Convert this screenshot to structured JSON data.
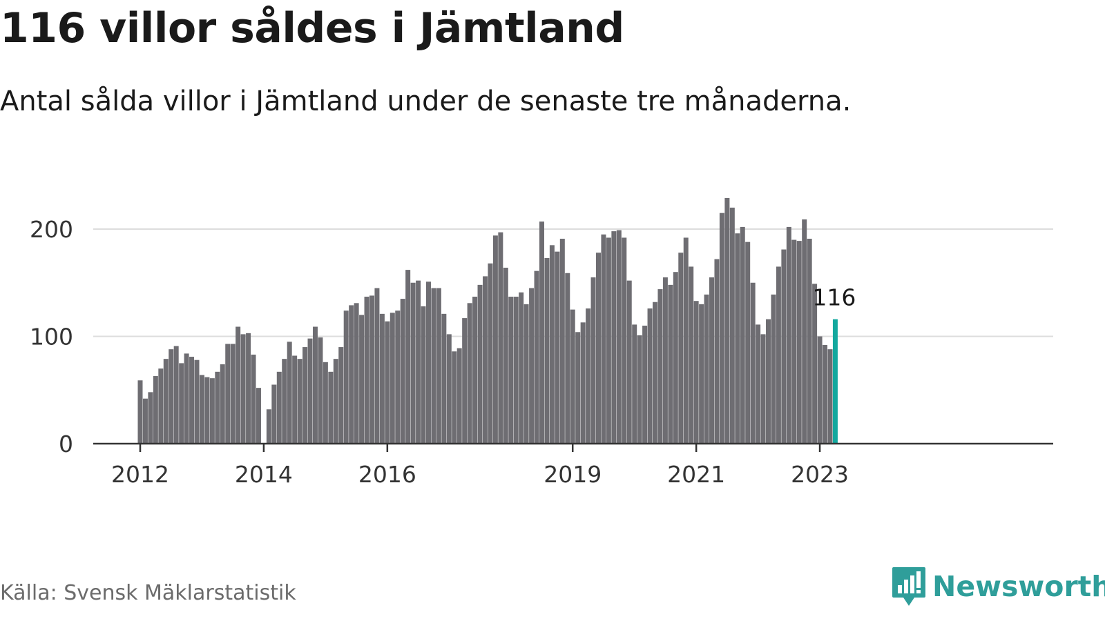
{
  "title": "116 villor såldes i Jämtland",
  "subtitle": "Antal sålda villor i Jämtland under de senaste tre månaderna.",
  "source": "Källa: Svensk Mäklarstatistik",
  "brand": {
    "name": "Newsworthy",
    "icon": "newsworthy-logo-icon",
    "color": "#2f9e9a"
  },
  "colors": {
    "bar": "#6e6d72",
    "highlight": "#13a89e",
    "grid": "#dddddd",
    "axis": "#333333"
  },
  "chart_data": {
    "type": "bar",
    "title": "116 villor såldes i Jämtland",
    "xlabel": "",
    "ylabel": "",
    "ylim": [
      0,
      230
    ],
    "yticks": [
      0,
      100,
      200
    ],
    "grid": true,
    "x_tick_labels": [
      {
        "label": "2012",
        "at": "2012-01"
      },
      {
        "label": "2014",
        "at": "2014-01"
      },
      {
        "label": "2016",
        "at": "2016-01"
      },
      {
        "label": "2019",
        "at": "2019-01"
      },
      {
        "label": "2021",
        "at": "2021-01"
      },
      {
        "label": "2023",
        "at": "2023-01"
      }
    ],
    "categories": [
      "2012-01",
      "2012-02",
      "2012-03",
      "2012-04",
      "2012-05",
      "2012-06",
      "2012-07",
      "2012-08",
      "2012-09",
      "2012-10",
      "2012-11",
      "2012-12",
      "2013-01",
      "2013-02",
      "2013-03",
      "2013-04",
      "2013-05",
      "2013-06",
      "2013-07",
      "2013-08",
      "2013-09",
      "2013-10",
      "2013-11",
      "2013-12",
      "2014-01",
      "2014-02",
      "2014-03",
      "2014-04",
      "2014-05",
      "2014-06",
      "2014-07",
      "2014-08",
      "2014-09",
      "2014-10",
      "2014-11",
      "2014-12",
      "2015-01",
      "2015-02",
      "2015-03",
      "2015-04",
      "2015-05",
      "2015-06",
      "2015-07",
      "2015-08",
      "2015-09",
      "2015-10",
      "2015-11",
      "2015-12",
      "2016-01",
      "2016-02",
      "2016-03",
      "2016-04",
      "2016-05",
      "2016-06",
      "2016-07",
      "2016-08",
      "2016-09",
      "2016-10",
      "2016-11",
      "2016-12",
      "2017-01",
      "2017-02",
      "2017-03",
      "2017-04",
      "2017-05",
      "2017-06",
      "2017-07",
      "2017-08",
      "2017-09",
      "2017-10",
      "2017-11",
      "2017-12",
      "2018-01",
      "2018-02",
      "2018-03",
      "2018-04",
      "2018-05",
      "2018-06",
      "2018-07",
      "2018-08",
      "2018-09",
      "2018-10",
      "2018-11",
      "2018-12",
      "2019-01",
      "2019-02",
      "2019-03",
      "2019-04",
      "2019-05",
      "2019-06",
      "2019-07",
      "2019-08",
      "2019-09",
      "2019-10",
      "2019-11",
      "2019-12",
      "2020-01",
      "2020-02",
      "2020-03",
      "2020-04",
      "2020-05",
      "2020-06",
      "2020-07",
      "2020-08",
      "2020-09",
      "2020-10",
      "2020-11",
      "2020-12",
      "2021-01",
      "2021-02",
      "2021-03",
      "2021-04",
      "2021-05",
      "2021-06",
      "2021-07",
      "2021-08",
      "2021-09",
      "2021-10",
      "2021-11",
      "2021-12",
      "2022-01",
      "2022-02",
      "2022-03",
      "2022-04",
      "2022-05",
      "2022-06",
      "2022-07",
      "2022-08",
      "2022-09",
      "2022-10",
      "2022-11",
      "2022-12",
      "2023-01",
      "2023-02",
      "2023-03",
      "2023-04"
    ],
    "values": [
      59,
      42,
      48,
      63,
      70,
      79,
      88,
      91,
      75,
      84,
      81,
      78,
      64,
      62,
      61,
      67,
      74,
      93,
      93,
      109,
      102,
      103,
      83,
      52,
      0,
      32,
      55,
      67,
      79,
      95,
      82,
      79,
      90,
      98,
      109,
      99,
      76,
      67,
      79,
      90,
      124,
      129,
      131,
      120,
      137,
      138,
      145,
      121,
      114,
      122,
      124,
      135,
      162,
      150,
      152,
      128,
      151,
      145,
      145,
      121,
      102,
      86,
      89,
      117,
      131,
      137,
      148,
      156,
      168,
      194,
      197,
      164,
      137,
      137,
      141,
      130,
      145,
      161,
      207,
      173,
      185,
      179,
      191,
      159,
      125,
      104,
      113,
      126,
      155,
      178,
      195,
      192,
      198,
      199,
      192,
      152,
      111,
      101,
      110,
      126,
      132,
      144,
      155,
      148,
      160,
      178,
      192,
      165,
      133,
      130,
      139,
      155,
      172,
      215,
      229,
      220,
      196,
      202,
      188,
      150,
      111,
      102,
      116,
      139,
      165,
      181,
      202,
      190,
      189,
      209,
      191,
      149,
      100,
      92,
      88,
      116
    ],
    "highlight_index": 135,
    "annotation": {
      "text": "116"
    }
  }
}
